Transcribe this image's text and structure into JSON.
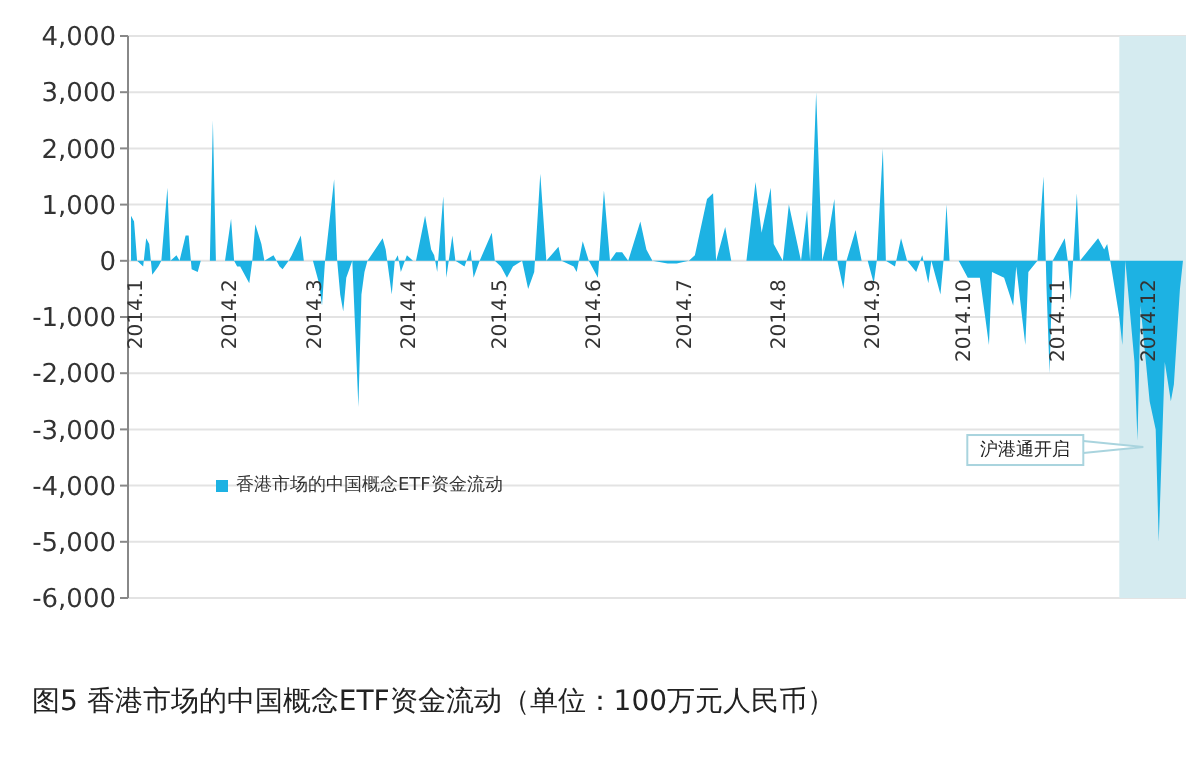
{
  "chart_data": {
    "type": "area",
    "title": "图5 香港市场的中国概念ETF资金流动（单位：100万元人民币）",
    "x": [
      "2013-12-30",
      "2013-12-31",
      "2014-01-01",
      "2014-01-03",
      "2014-01-04",
      "2014-01-05",
      "2014-01-06",
      "2014-01-08",
      "2014-01-09",
      "2014-01-11",
      "2014-01-12",
      "2014-01-14",
      "2014-01-15",
      "2014-01-17",
      "2014-01-18",
      "2014-01-19",
      "2014-01-21",
      "2014-01-22",
      "2014-01-25",
      "2014-01-26",
      "2014-01-27",
      "2014-01-30",
      "2014-02-01",
      "2014-02-02",
      "2014-02-03",
      "2014-02-04",
      "2014-02-07",
      "2014-02-08",
      "2014-02-09",
      "2014-02-11",
      "2014-02-12",
      "2014-02-15",
      "2014-02-17",
      "2014-02-18",
      "2014-02-20",
      "2014-02-21",
      "2014-02-24",
      "2014-02-25",
      "2014-02-28",
      "2014-03-02",
      "2014-03-03",
      "2014-03-04",
      "2014-03-07",
      "2014-03-08",
      "2014-03-09",
      "2014-03-10",
      "2014-03-11",
      "2014-03-13",
      "2014-03-15",
      "2014-03-16",
      "2014-03-17",
      "2014-03-18",
      "2014-03-23",
      "2014-03-24",
      "2014-03-26",
      "2014-03-27",
      "2014-03-28",
      "2014-03-29",
      "2014-03-31",
      "2014-04-02",
      "2014-04-03",
      "2014-04-06",
      "2014-04-08",
      "2014-04-09",
      "2014-04-10",
      "2014-04-12",
      "2014-04-13",
      "2014-04-15",
      "2014-04-16",
      "2014-04-19",
      "2014-04-21",
      "2014-04-22",
      "2014-04-24",
      "2014-04-28",
      "2014-04-29",
      "2014-05-01",
      "2014-05-03",
      "2014-05-05",
      "2014-05-08",
      "2014-05-10",
      "2014-05-12",
      "2014-05-14",
      "2014-05-16",
      "2014-05-20",
      "2014-05-21",
      "2014-05-25",
      "2014-05-26",
      "2014-05-28",
      "2014-05-30",
      "2014-06-02",
      "2014-06-04",
      "2014-06-06",
      "2014-06-08",
      "2014-06-10",
      "2014-06-12",
      "2014-06-16",
      "2014-06-18",
      "2014-06-20",
      "2014-06-25",
      "2014-06-28",
      "2014-07-02",
      "2014-07-04",
      "2014-07-08",
      "2014-07-10",
      "2014-07-11",
      "2014-07-14",
      "2014-07-16",
      "2014-07-21",
      "2014-07-24",
      "2014-07-26",
      "2014-07-29",
      "2014-07-30",
      "2014-08-02",
      "2014-08-04",
      "2014-08-06",
      "2014-08-08",
      "2014-08-10",
      "2014-08-11",
      "2014-08-13",
      "2014-08-15",
      "2014-08-17",
      "2014-08-19",
      "2014-08-20",
      "2014-08-22",
      "2014-08-23",
      "2014-08-26",
      "2014-08-28",
      "2014-08-30",
      "2014-09-01",
      "2014-09-02",
      "2014-09-04",
      "2014-09-05",
      "2014-09-08",
      "2014-09-10",
      "2014-09-12",
      "2014-09-15",
      "2014-09-17",
      "2014-09-19",
      "2014-09-20",
      "2014-09-23",
      "2014-09-24",
      "2014-09-25",
      "2014-09-26",
      "2014-09-29",
      "2014-10-02",
      "2014-10-06",
      "2014-10-09",
      "2014-10-10",
      "2014-10-14",
      "2014-10-17",
      "2014-10-18",
      "2014-10-21",
      "2014-10-22",
      "2014-10-25",
      "2014-10-27",
      "2014-10-28",
      "2014-10-29",
      "2014-10-30",
      "2014-11-03",
      "2014-11-04",
      "2014-11-05",
      "2014-11-07",
      "2014-11-08",
      "2014-11-11",
      "2014-11-14",
      "2014-11-16",
      "2014-11-17",
      "2014-11-18",
      "2014-11-21",
      "2014-11-22",
      "2014-11-23",
      "2014-11-26",
      "2014-11-27",
      "2014-11-28",
      "2014-12-01",
      "2014-12-03",
      "2014-12-04",
      "2014-12-06",
      "2014-12-08",
      "2014-12-09",
      "2014-12-11",
      "2014-12-12"
    ],
    "series": [
      {
        "name": "香港市场的中国概念ETF资金流动",
        "color": "#1db2e3",
        "values": [
          800,
          700,
          0,
          -100,
          400,
          300,
          -250,
          -100,
          0,
          1300,
          0,
          100,
          0,
          450,
          450,
          -150,
          -200,
          0,
          0,
          2500,
          0,
          0,
          750,
          0,
          -100,
          -100,
          -400,
          0,
          650,
          300,
          0,
          100,
          -100,
          -150,
          0,
          100,
          450,
          0,
          0,
          -400,
          -800,
          0,
          1450,
          0,
          -600,
          -900,
          -300,
          0,
          -2600,
          -600,
          -200,
          0,
          400,
          200,
          -600,
          0,
          100,
          -200,
          100,
          0,
          0,
          800,
          200,
          100,
          -200,
          1150,
          -300,
          450,
          0,
          -100,
          200,
          -300,
          0,
          500,
          0,
          -100,
          -300,
          -100,
          0,
          -500,
          -200,
          1550,
          0,
          250,
          0,
          -100,
          -200,
          350,
          0,
          -300,
          1250,
          0,
          150,
          150,
          0,
          700,
          200,
          0,
          -50,
          -50,
          0,
          100,
          1100,
          1200,
          0,
          600,
          0,
          0,
          1400,
          500,
          1300,
          300,
          0,
          1000,
          500,
          0,
          900,
          0,
          3000,
          0,
          450,
          1100,
          0,
          -500,
          0,
          550,
          0,
          0,
          -400,
          0,
          2000,
          0,
          -100,
          400,
          0,
          -200,
          100,
          -400,
          0,
          -600,
          0,
          1000,
          0,
          0,
          -300,
          -300,
          -1500,
          -200,
          -300,
          -800,
          -100,
          -1500,
          -200,
          0,
          1500,
          -500,
          -2000,
          0,
          400,
          0,
          -700,
          1200,
          0,
          200,
          400,
          200,
          300,
          0,
          -1000,
          -1500,
          0,
          -1800,
          -3200,
          -800,
          -2500,
          -3000,
          -5000,
          -1800,
          -2500,
          -2200,
          -500,
          0
        ]
      }
    ],
    "xlim": [
      "2013-12-29",
      "2014-12-13"
    ],
    "xticks": [
      {
        "value": "2014-01-01",
        "label": "2014.1"
      },
      {
        "value": "2014-02-01",
        "label": "2014.2"
      },
      {
        "value": "2014-03-01",
        "label": "2014.3"
      },
      {
        "value": "2014-04-01",
        "label": "2014.4"
      },
      {
        "value": "2014-05-01",
        "label": "2014.5"
      },
      {
        "value": "2014-06-01",
        "label": "2014.6"
      },
      {
        "value": "2014-07-01",
        "label": "2014.7"
      },
      {
        "value": "2014-08-01",
        "label": "2014.8"
      },
      {
        "value": "2014-09-01",
        "label": "2014.9"
      },
      {
        "value": "2014-10-01",
        "label": "2014.10"
      },
      {
        "value": "2014-11-01",
        "label": "2014.11"
      },
      {
        "value": "2014-12-01",
        "label": "2014.12"
      }
    ],
    "ylim": [
      -6000,
      4000
    ],
    "yticks": [
      {
        "value": -6000,
        "label": "-6,000"
      },
      {
        "value": -5000,
        "label": "-5,000"
      },
      {
        "value": -4000,
        "label": "-4,000"
      },
      {
        "value": -3000,
        "label": "-3,000"
      },
      {
        "value": -2000,
        "label": "-2,000"
      },
      {
        "value": -1000,
        "label": "-1,000"
      },
      0,
      {
        "value": 1000,
        "label": "1,000"
      },
      {
        "value": 2000,
        "label": "2,000"
      },
      {
        "value": 3000,
        "label": "3,000"
      },
      {
        "value": 4000,
        "label": "4,000"
      }
    ],
    "bands": [
      {
        "axis": "x",
        "from": "2014-11-21",
        "to": "2014-12-13",
        "label": "沪港通开启",
        "color": "#d5ebf0"
      }
    ],
    "grid": "y",
    "legend": "left"
  }
}
